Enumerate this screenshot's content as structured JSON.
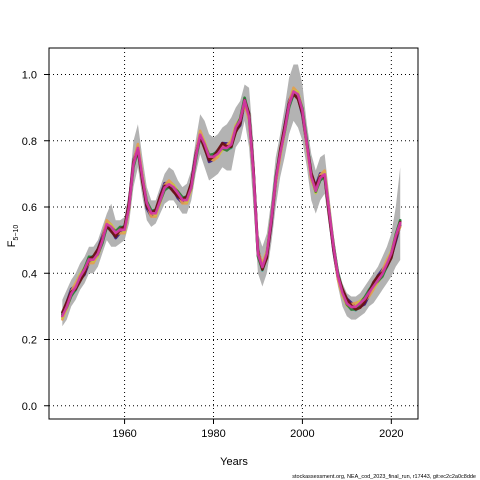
{
  "chart_data": {
    "type": "line",
    "title": "",
    "xlabel": "Years",
    "ylabel": {
      "base": "F",
      "subscript": "5−10"
    },
    "xlim": [
      1943,
      2026
    ],
    "ylim": [
      -0.04,
      1.08
    ],
    "xticks": [
      1960,
      1980,
      2000,
      2020
    ],
    "yticks": [
      0.0,
      0.2,
      0.4,
      0.6,
      0.8,
      1.0
    ],
    "xtick_labels": [
      "1960",
      "1980",
      "2000",
      "2020"
    ],
    "ytick_labels": [
      "0.0",
      "0.2",
      "0.4",
      "0.6",
      "0.8",
      "1.0"
    ],
    "grid": "dotted",
    "footnote": "stockassessment.org, NEA_cod_2023_final_run, r17443, git:ec2c2a0c8dde",
    "x": [
      1946,
      1947,
      1948,
      1949,
      1950,
      1951,
      1952,
      1953,
      1954,
      1955,
      1956,
      1957,
      1958,
      1959,
      1960,
      1961,
      1962,
      1963,
      1964,
      1965,
      1966,
      1967,
      1968,
      1969,
      1970,
      1971,
      1972,
      1973,
      1974,
      1975,
      1976,
      1977,
      1978,
      1979,
      1980,
      1981,
      1982,
      1983,
      1984,
      1985,
      1986,
      1987,
      1988,
      1989,
      1990,
      1991,
      1992,
      1993,
      1994,
      1995,
      1996,
      1997,
      1998,
      1999,
      2000,
      2001,
      2002,
      2003,
      2004,
      2005,
      2006,
      2007,
      2008,
      2009,
      2010,
      2011,
      2012,
      2013,
      2014,
      2015,
      2016,
      2017,
      2018,
      2019,
      2020,
      2021,
      2022
    ],
    "band": {
      "lower": [
        0.24,
        0.26,
        0.3,
        0.32,
        0.35,
        0.37,
        0.4,
        0.4,
        0.42,
        0.46,
        0.5,
        0.48,
        0.48,
        0.49,
        0.5,
        0.55,
        0.66,
        0.72,
        0.63,
        0.56,
        0.54,
        0.55,
        0.58,
        0.61,
        0.62,
        0.62,
        0.6,
        0.58,
        0.58,
        0.62,
        0.7,
        0.76,
        0.72,
        0.68,
        0.69,
        0.7,
        0.72,
        0.71,
        0.71,
        0.78,
        0.8,
        0.86,
        0.78,
        0.6,
        0.4,
        0.36,
        0.4,
        0.49,
        0.6,
        0.69,
        0.75,
        0.82,
        0.86,
        0.84,
        0.8,
        0.72,
        0.62,
        0.58,
        0.62,
        0.64,
        0.54,
        0.44,
        0.36,
        0.3,
        0.27,
        0.26,
        0.26,
        0.27,
        0.28,
        0.3,
        0.31,
        0.33,
        0.35,
        0.37,
        0.39,
        0.42,
        0.44
      ],
      "upper": [
        0.32,
        0.35,
        0.38,
        0.4,
        0.43,
        0.45,
        0.48,
        0.48,
        0.5,
        0.54,
        0.58,
        0.61,
        0.56,
        0.56,
        0.57,
        0.65,
        0.8,
        0.85,
        0.75,
        0.66,
        0.62,
        0.62,
        0.66,
        0.7,
        0.72,
        0.71,
        0.68,
        0.66,
        0.67,
        0.71,
        0.8,
        0.88,
        0.86,
        0.82,
        0.81,
        0.82,
        0.84,
        0.85,
        0.87,
        0.9,
        0.92,
        0.97,
        0.96,
        0.79,
        0.52,
        0.48,
        0.52,
        0.62,
        0.75,
        0.82,
        0.9,
        0.99,
        1.03,
        1.03,
        0.97,
        0.85,
        0.76,
        0.71,
        0.75,
        0.76,
        0.64,
        0.52,
        0.42,
        0.37,
        0.34,
        0.33,
        0.33,
        0.34,
        0.36,
        0.38,
        0.4,
        0.42,
        0.45,
        0.48,
        0.52,
        0.6,
        0.72
      ]
    },
    "series": [
      {
        "color": "#1f1f1f",
        "offset": 0.0
      },
      {
        "color": "#3cb39a",
        "offset": 0.012
      },
      {
        "color": "#3b1d86",
        "offset": -0.014
      },
      {
        "color": "#e49f4d",
        "offset": 0.01
      },
      {
        "color": "#c9c542",
        "offset": -0.008
      },
      {
        "color": "#5e9fd6",
        "offset": 0.006
      },
      {
        "color": "#e2587a",
        "offset": -0.004
      },
      {
        "color": "#2e7d32",
        "offset": -0.01
      },
      {
        "color": "#6b1010",
        "offset": 0.014
      },
      {
        "color": "#d63aa8",
        "offset": 0.002
      }
    ],
    "base": [
      0.27,
      0.3,
      0.34,
      0.36,
      0.39,
      0.41,
      0.44,
      0.44,
      0.46,
      0.5,
      0.55,
      0.54,
      0.52,
      0.53,
      0.53,
      0.6,
      0.73,
      0.78,
      0.69,
      0.61,
      0.58,
      0.58,
      0.62,
      0.66,
      0.67,
      0.66,
      0.64,
      0.62,
      0.62,
      0.66,
      0.75,
      0.82,
      0.79,
      0.75,
      0.75,
      0.76,
      0.78,
      0.78,
      0.79,
      0.84,
      0.86,
      0.92,
      0.87,
      0.7,
      0.46,
      0.42,
      0.46,
      0.56,
      0.68,
      0.76,
      0.83,
      0.91,
      0.95,
      0.94,
      0.89,
      0.79,
      0.69,
      0.65,
      0.69,
      0.7,
      0.59,
      0.48,
      0.39,
      0.34,
      0.31,
      0.3,
      0.3,
      0.31,
      0.32,
      0.34,
      0.36,
      0.38,
      0.4,
      0.43,
      0.46,
      0.51,
      0.55
    ]
  }
}
